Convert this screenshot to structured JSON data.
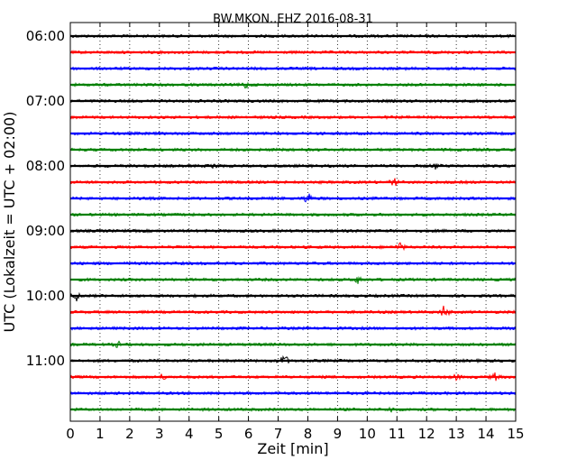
{
  "chart_data": {
    "type": "line",
    "title": "BW.MKON..EHZ 2016-08-31",
    "xlabel": "Zeit  [min]",
    "ylabel": "UTC (Lokalzeit = UTC + 02:00)",
    "xlim": [
      0,
      15
    ],
    "x_ticks": [
      "0",
      "1",
      "2",
      "3",
      "4",
      "5",
      "6",
      "7",
      "8",
      "9",
      "10",
      "11",
      "12",
      "13",
      "14",
      "15"
    ],
    "y_ticks": [
      "06:00",
      "07:00",
      "08:00",
      "09:00",
      "10:00",
      "11:00"
    ],
    "grid": "vertical dotted",
    "trace_colors": [
      "#000000",
      "#ff0000",
      "#0000ff",
      "#008000"
    ],
    "traces": [
      {
        "start": "06:00",
        "color": "#000000",
        "events": []
      },
      {
        "start": "06:15",
        "color": "#ff0000",
        "events": []
      },
      {
        "start": "06:30",
        "color": "#0000ff",
        "events": []
      },
      {
        "start": "06:45",
        "color": "#008000",
        "events": [
          {
            "t": 5.9,
            "amp": 0.5
          }
        ]
      },
      {
        "start": "07:00",
        "color": "#000000",
        "events": []
      },
      {
        "start": "07:15",
        "color": "#ff0000",
        "events": []
      },
      {
        "start": "07:30",
        "color": "#0000ff",
        "events": []
      },
      {
        "start": "07:45",
        "color": "#008000",
        "events": []
      },
      {
        "start": "08:00",
        "color": "#000000",
        "events": [
          {
            "t": 4.8,
            "amp": 0.6
          },
          {
            "t": 12.3,
            "amp": 0.4
          }
        ]
      },
      {
        "start": "08:15",
        "color": "#ff0000",
        "events": [
          {
            "t": 10.9,
            "amp": 0.7
          }
        ]
      },
      {
        "start": "08:30",
        "color": "#0000ff",
        "events": [
          {
            "t": 8.0,
            "amp": 1.0
          }
        ]
      },
      {
        "start": "08:45",
        "color": "#008000",
        "events": []
      },
      {
        "start": "09:00",
        "color": "#000000",
        "events": []
      },
      {
        "start": "09:15",
        "color": "#ff0000",
        "events": [
          {
            "t": 11.1,
            "amp": 0.7
          }
        ]
      },
      {
        "start": "09:30",
        "color": "#0000ff",
        "events": []
      },
      {
        "start": "09:45",
        "color": "#008000",
        "events": [
          {
            "t": 9.7,
            "amp": 0.6
          }
        ]
      },
      {
        "start": "10:00",
        "color": "#000000",
        "events": [
          {
            "t": 0.2,
            "amp": 0.7
          }
        ]
      },
      {
        "start": "10:15",
        "color": "#ff0000",
        "events": [
          {
            "t": 12.6,
            "amp": 1.1
          }
        ]
      },
      {
        "start": "10:30",
        "color": "#0000ff",
        "events": []
      },
      {
        "start": "10:45",
        "color": "#008000",
        "events": [
          {
            "t": 1.6,
            "amp": 0.4
          }
        ]
      },
      {
        "start": "11:00",
        "color": "#000000",
        "events": [
          {
            "t": 7.2,
            "amp": 1.2
          }
        ]
      },
      {
        "start": "11:15",
        "color": "#ff0000",
        "events": [
          {
            "t": 3.1,
            "amp": 0.4
          },
          {
            "t": 13.0,
            "amp": 0.4
          },
          {
            "t": 14.3,
            "amp": 0.5
          }
        ]
      },
      {
        "start": "11:30",
        "color": "#0000ff",
        "events": []
      },
      {
        "start": "11:45",
        "color": "#008000",
        "events": [
          {
            "t": 10.8,
            "amp": 0.3
          }
        ]
      }
    ]
  }
}
